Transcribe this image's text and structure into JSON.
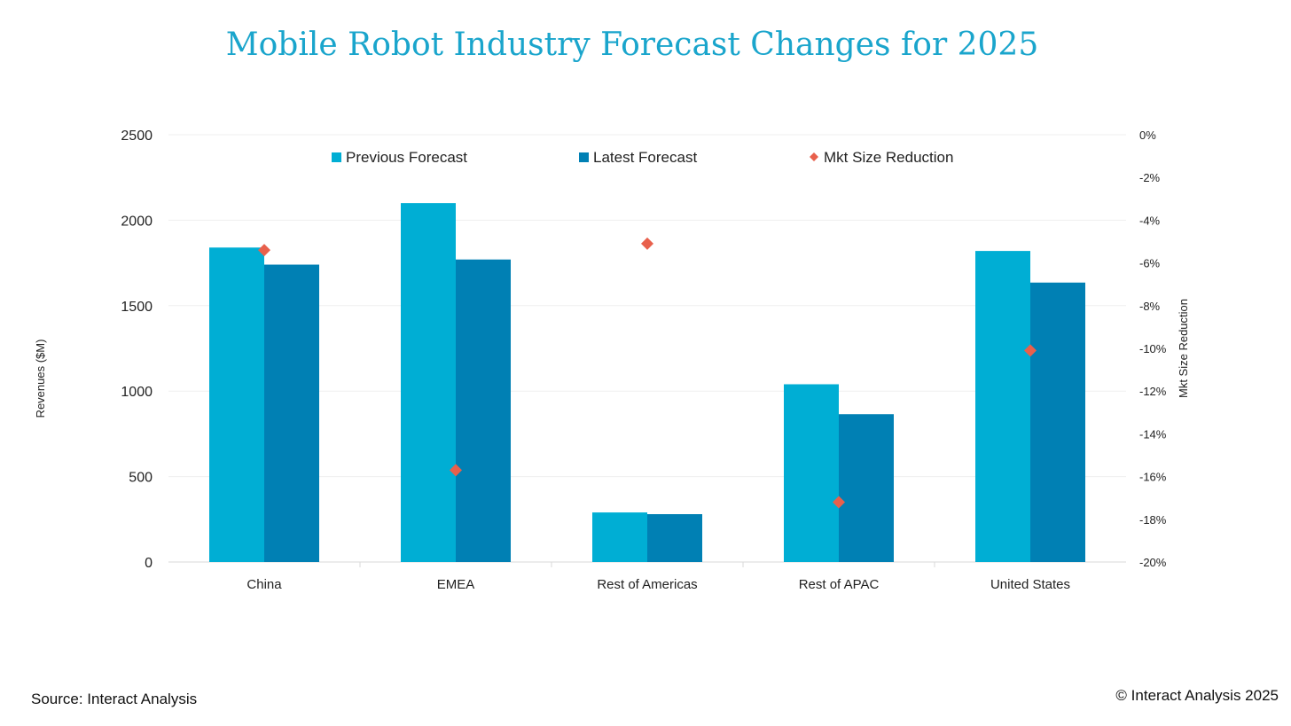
{
  "chart_data": {
    "type": "bar",
    "title": "Mobile Robot Industry Forecast Changes for 2025",
    "categories": [
      "China",
      "EMEA",
      "Rest of Americas",
      "Rest of APAC",
      "United States"
    ],
    "series": [
      {
        "name": "Previous Forecast",
        "axis": "left",
        "kind": "bar",
        "color": "#00aed4",
        "values": [
          1840,
          2100,
          290,
          1040,
          1820
        ]
      },
      {
        "name": "Latest Forecast",
        "axis": "left",
        "kind": "bar",
        "color": "#0080b4",
        "values": [
          1740,
          1770,
          280,
          865,
          1635
        ]
      },
      {
        "name": "Mkt Size Reduction",
        "axis": "right",
        "kind": "scatter",
        "marker": "diamond",
        "color": "#e8604c",
        "values": [
          -5.4,
          -15.7,
          -5.1,
          -17.2,
          -10.1
        ]
      }
    ],
    "ylabel": "Revenues ($M)",
    "ylim": [
      0,
      2500
    ],
    "yticks": [
      "0",
      "500",
      "1000",
      "1500",
      "2000",
      "2500"
    ],
    "y2label": "Mkt Size Reduction",
    "y2lim": [
      -20,
      0
    ],
    "y2ticks": [
      "-20%",
      "-18%",
      "-16%",
      "-14%",
      "-12%",
      "-10%",
      "-8%",
      "-6%",
      "-4%",
      "-2%",
      "0%"
    ],
    "grid": true,
    "legend": "top-center"
  },
  "footer": {
    "source": "Source: Interact Analysis",
    "copyright": "© Interact Analysis 2025"
  }
}
